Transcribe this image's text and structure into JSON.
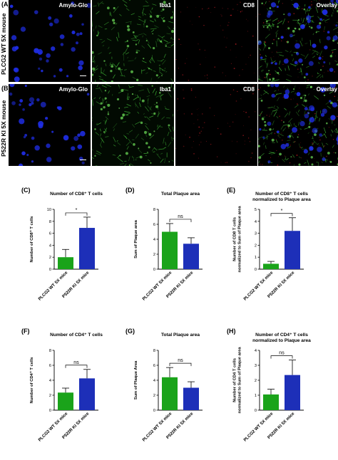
{
  "images": {
    "rows": [
      {
        "letter": "(A)",
        "row_label": "PLCG2 WT 5X mouse"
      },
      {
        "letter": "(B)",
        "row_label": "P522R KI 5X mouse"
      }
    ],
    "channels": [
      "Amylo-Glo",
      "Iba1",
      "CD8",
      "Overlay"
    ]
  },
  "colors": {
    "wt": "#1aa31a",
    "ki": "#1d2fb8",
    "amylo": "#1f2ee8",
    "iba1": "#46c83c",
    "cd8": "#c71d24"
  },
  "chart_data": [
    {
      "type": "bar",
      "letter": "(C)",
      "title": [
        "Number of CD8⁺ T cells"
      ],
      "ylabel": [
        "Number of CD8⁺ T cells"
      ],
      "categories": [
        "PLCG2 WT 5X mice",
        "P522R KI 5X mice"
      ],
      "values": [
        2.0,
        6.9
      ],
      "errors": [
        1.3,
        1.8
      ],
      "ylim": [
        0,
        10
      ],
      "yticks": [
        "0",
        "2",
        "4",
        "6",
        "8",
        "10"
      ],
      "significance": "*"
    },
    {
      "type": "bar",
      "letter": "(D)",
      "title": [
        "Total Plaque area"
      ],
      "ylabel": [
        "Sum of Plaque area"
      ],
      "categories": [
        "PLCG2 WT 5X mice",
        "P522R KI 5X mice"
      ],
      "values": [
        5.0,
        3.4
      ],
      "errors": [
        1.1,
        0.8
      ],
      "ylim": [
        0,
        8
      ],
      "yticks": [
        "0",
        "2",
        "4",
        "6",
        "8"
      ],
      "significance": "ns"
    },
    {
      "type": "bar",
      "letter": "(E)",
      "title": [
        "Number of CD8⁺ T cells",
        "normalized to Plaque area"
      ],
      "ylabel": [
        "Number of CD8 T cells",
        "normalized to Sum of Plaque area"
      ],
      "categories": [
        "PLCG2 WT 5X mice",
        "P522R KI 5X mice"
      ],
      "values": [
        0.45,
        3.2
      ],
      "errors": [
        0.2,
        1.1
      ],
      "ylim": [
        0,
        5
      ],
      "yticks": [
        "0",
        "1",
        "2",
        "3",
        "4",
        "5"
      ],
      "significance": "*"
    },
    {
      "type": "bar",
      "letter": "(F)",
      "title": [
        "Number of CD4⁺ T cells"
      ],
      "ylabel": [
        "Number of CD4⁺ T cells"
      ],
      "categories": [
        "PLCG2 WT 5X mice",
        "P522R KI 5X mice"
      ],
      "values": [
        2.35,
        4.25
      ],
      "errors": [
        0.6,
        1.2
      ],
      "ylim": [
        0,
        8
      ],
      "yticks": [
        "0",
        "2",
        "4",
        "6",
        "8"
      ],
      "significance": "ns"
    },
    {
      "type": "bar",
      "letter": "(G)",
      "title": [
        "Total Plaque area"
      ],
      "ylabel": [
        "Sum of Plaque Area"
      ],
      "categories": [
        "PLCG2 WT 5X mice",
        "P522R KI 5X mice"
      ],
      "values": [
        4.4,
        3.0
      ],
      "errors": [
        1.3,
        0.8
      ],
      "ylim": [
        0,
        8
      ],
      "yticks": [
        "0",
        "2",
        "4",
        "6",
        "8"
      ],
      "significance": "ns"
    },
    {
      "type": "bar",
      "letter": "(H)",
      "title": [
        "Number of CD4⁺ T cells",
        "normalized to Plaque area"
      ],
      "ylabel": [
        "Number of CD4 T cells",
        "normalized to Sum of Plaque area"
      ],
      "categories": [
        "PLCG2 WT 5X mice",
        "P522R KI 5X mice"
      ],
      "values": [
        1.05,
        2.35
      ],
      "errors": [
        0.35,
        1.0
      ],
      "ylim": [
        0,
        4
      ],
      "yticks": [
        "0",
        "1",
        "2",
        "3",
        "4"
      ],
      "significance": "ns"
    }
  ]
}
